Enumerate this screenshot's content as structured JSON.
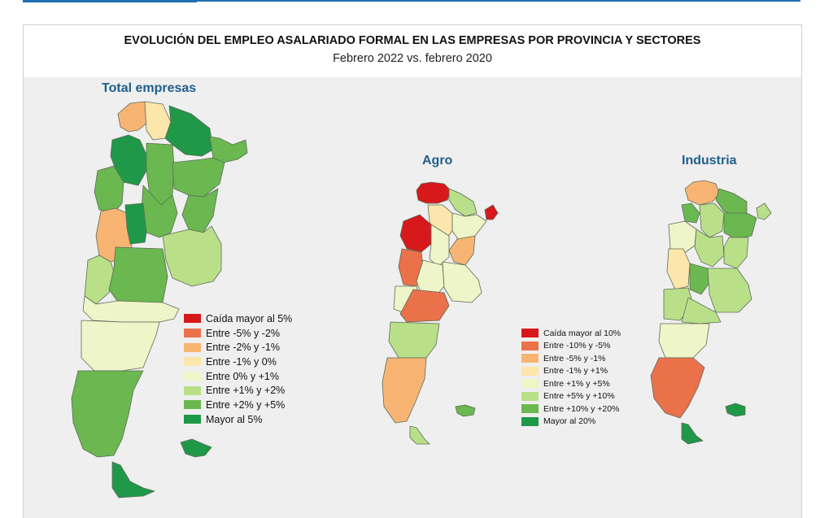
{
  "header": {
    "title": "EVOLUCIÓN DEL EMPLEO ASALARIADO FORMAL EN LAS EMPRESAS POR PROVINCIA Y SECTORES",
    "subtitle": "Febrero 2022 vs. febrero 2020"
  },
  "maps": {
    "total": {
      "title": "Total empresas",
      "legend": [
        {
          "label": "Caída mayor al 5%",
          "color": "#d7191c"
        },
        {
          "label": "Entre -5% y -2%",
          "color": "#ea714a"
        },
        {
          "label": "Entre -2% y -1%",
          "color": "#f8b473"
        },
        {
          "label": "Entre -1% y 0%",
          "color": "#fce6ab"
        },
        {
          "label": "Entre 0% y +1%",
          "color": "#eef5c8"
        },
        {
          "label": "Entre +1% y +2%",
          "color": "#b9e089"
        },
        {
          "label": "Entre +2% y +5%",
          "color": "#6ab84f"
        },
        {
          "label": "Mayor al 5%",
          "color": "#1f9848"
        }
      ]
    },
    "agro": {
      "title": "Agro"
    },
    "industria": {
      "title": "Industria"
    },
    "sector_legend": [
      {
        "label": "Caída mayor al 10%",
        "color": "#d7191c"
      },
      {
        "label": "Entre -10% y -5%",
        "color": "#ea714a"
      },
      {
        "label": "Entre -5% y -1%",
        "color": "#f8b473"
      },
      {
        "label": "Entre -1% y +1%",
        "color": "#fce6ab"
      },
      {
        "label": "Entre +1% y +5%",
        "color": "#eef5c8"
      },
      {
        "label": "Entre +5% y +10%",
        "color": "#b9e089"
      },
      {
        "label": "Entre +10% y +20%",
        "color": "#6ab84f"
      },
      {
        "label": "Mayor al 20%",
        "color": "#1f9848"
      }
    ]
  }
}
